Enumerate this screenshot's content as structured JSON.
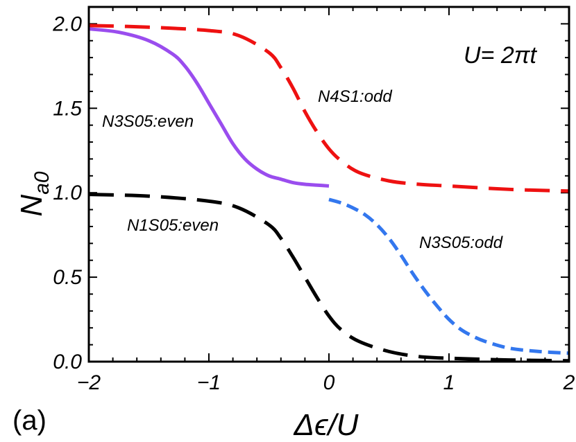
{
  "chart_data": {
    "type": "line",
    "panel_label": "(a)",
    "annotation": "U= 2πt",
    "xlabel": "Δϵ/U",
    "ylabel_main": "N",
    "ylabel_sub": "a0",
    "xlim": [
      -2,
      2
    ],
    "ylim": [
      0,
      2.1
    ],
    "x_ticks": [
      -2,
      -1,
      0,
      1,
      2
    ],
    "x_tick_labels": [
      "−2",
      "−1",
      "0",
      "1",
      "2"
    ],
    "y_ticks": [
      0,
      0.5,
      1.0,
      1.5,
      2.0
    ],
    "y_tick_labels": [
      "0.0",
      "0.5",
      "1.0",
      "1.5",
      "2.0"
    ],
    "series": [
      {
        "name": "N4S1:odd",
        "color": "#ee1111",
        "style": "dash-long",
        "x": [
          -2,
          -1.5,
          -1.0,
          -0.75,
          -0.5,
          -0.4,
          -0.3,
          -0.2,
          -0.1,
          0.0,
          0.1,
          0.25,
          0.5,
          0.75,
          1.0,
          1.5,
          2.0
        ],
        "y": [
          1.99,
          1.98,
          1.96,
          1.93,
          1.83,
          1.74,
          1.62,
          1.48,
          1.36,
          1.26,
          1.19,
          1.12,
          1.07,
          1.05,
          1.04,
          1.02,
          1.01
        ]
      },
      {
        "name": "N3S05:even",
        "color": "#9a4dee",
        "style": "solid",
        "x": [
          -2.0,
          -1.75,
          -1.5,
          -1.3,
          -1.2,
          -1.1,
          -1.0,
          -0.9,
          -0.8,
          -0.7,
          -0.6,
          -0.5,
          -0.4,
          -0.3,
          -0.2,
          -0.1,
          0.0
        ],
        "y": [
          1.97,
          1.95,
          1.9,
          1.82,
          1.75,
          1.65,
          1.53,
          1.41,
          1.29,
          1.2,
          1.14,
          1.1,
          1.08,
          1.06,
          1.05,
          1.045,
          1.04
        ]
      },
      {
        "name": "N3S05:odd",
        "color": "#3377ee",
        "style": "dash-short",
        "x": [
          0.0,
          0.1,
          0.2,
          0.3,
          0.4,
          0.5,
          0.6,
          0.7,
          0.8,
          0.9,
          1.0,
          1.1,
          1.2,
          1.3,
          1.5,
          1.75,
          2.0
        ],
        "y": [
          0.96,
          0.94,
          0.91,
          0.87,
          0.81,
          0.73,
          0.63,
          0.52,
          0.42,
          0.33,
          0.25,
          0.19,
          0.15,
          0.12,
          0.08,
          0.06,
          0.05
        ]
      },
      {
        "name": "N1S05:even",
        "color": "#000000",
        "style": "dash-long",
        "x": [
          -2.0,
          -1.5,
          -1.0,
          -0.75,
          -0.5,
          -0.4,
          -0.3,
          -0.2,
          -0.1,
          0.0,
          0.1,
          0.25,
          0.5,
          0.75,
          1.0,
          1.5,
          2.0
        ],
        "y": [
          0.99,
          0.98,
          0.95,
          0.91,
          0.81,
          0.73,
          0.62,
          0.5,
          0.38,
          0.27,
          0.19,
          0.12,
          0.06,
          0.03,
          0.02,
          0.01,
          0.005
        ]
      }
    ]
  }
}
